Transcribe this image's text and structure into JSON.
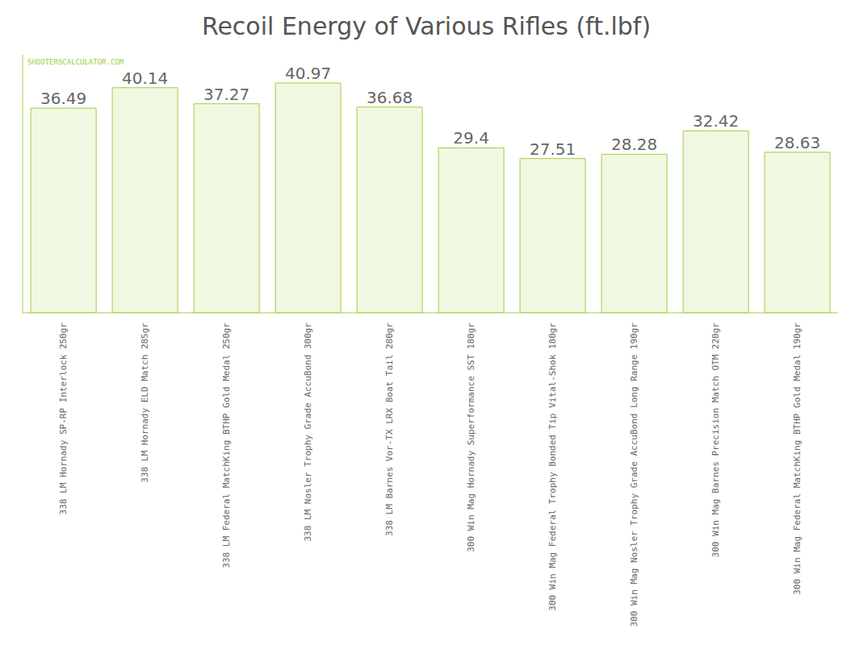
{
  "chart_data": {
    "type": "bar",
    "title": "Recoil Energy of Various Rifles (ft.lbf)",
    "categories": [
      "338 LM Hornady SP-RP Interlock 250gr",
      "338 LM Hornady ELD Match 285gr",
      "338 LM Federal MatchKing BTHP Gold Medal 250gr",
      "338 LM Nosler Trophy Grade AccuBond 300gr",
      "338 LM Barnes Vor-TX LRX Boat Tail 280gr",
      "300 Win Mag Hornady Superformance SST 180gr",
      "300 Win Mag Federal Trophy Bonded Tip Vital-Shok 180gr",
      "300 Win Mag Nosler Trophy Grade AccuBond Long Range 190gr",
      "300 Win Mag Barnes Precision Match OTM 220gr",
      "300 Win Mag Federal MatchKing BTHP Gold Medal 190gr"
    ],
    "values": [
      36.49,
      40.14,
      37.27,
      40.97,
      36.68,
      29.4,
      27.51,
      28.28,
      32.42,
      28.63
    ],
    "color": "#9ecf3c",
    "ylim": [
      0,
      46
    ],
    "grid": false,
    "data_labels": true,
    "tick_labels": "x",
    "annotations": [
      "SHOOTERSCALCULATOR.COM"
    ]
  }
}
